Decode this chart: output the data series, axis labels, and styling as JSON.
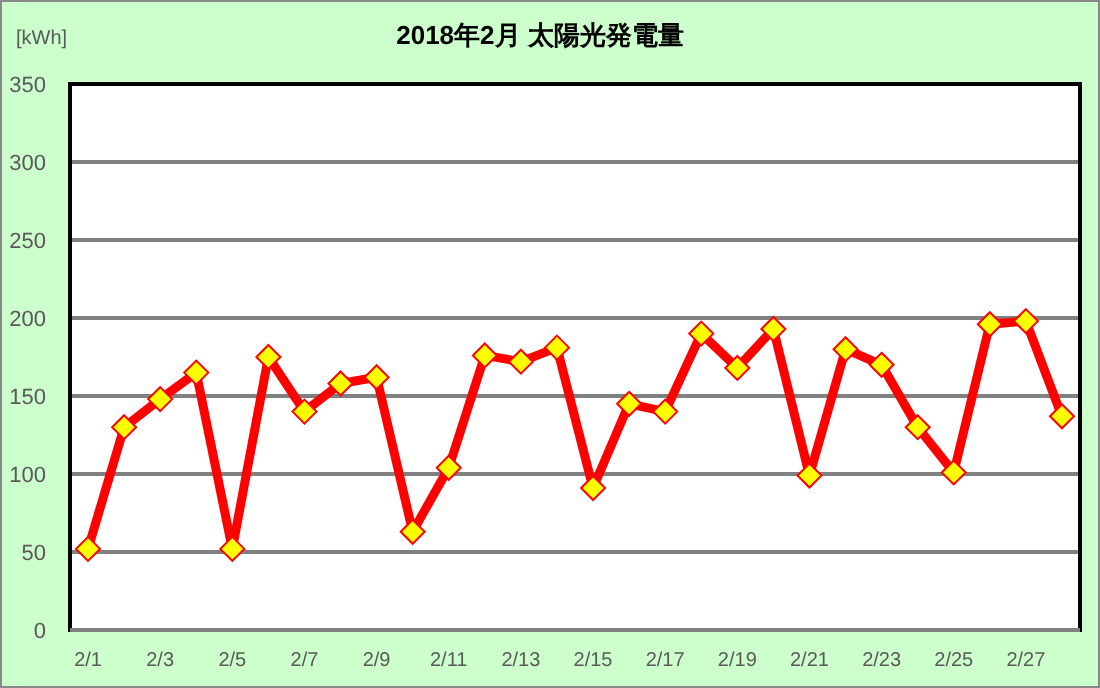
{
  "chart_data": {
    "type": "line",
    "title": "2018年2月  太陽光発電量",
    "ylabel": "[kWh]",
    "categories": [
      "2/1",
      null,
      "2/3",
      null,
      "2/5",
      null,
      "2/7",
      null,
      "2/9",
      null,
      "2/11",
      null,
      "2/13",
      null,
      "2/15",
      null,
      "2/17",
      null,
      "2/19",
      null,
      "2/21",
      null,
      "2/23",
      null,
      "2/25",
      null,
      "2/27",
      null
    ],
    "series": [
      {
        "color": "#ff0000",
        "values": [
          52,
          130,
          148,
          165,
          52,
          175,
          140,
          158,
          162,
          63,
          104,
          176,
          172,
          181,
          91,
          145,
          140,
          190,
          168,
          193,
          99,
          180,
          170,
          130,
          101,
          196,
          198,
          137
        ]
      }
    ],
    "ylim": [
      0,
      350
    ],
    "yticks": [
      0,
      50,
      100,
      150,
      200,
      250,
      300,
      350
    ],
    "grid": "y",
    "marker": "diamond",
    "line_style": "solid"
  }
}
